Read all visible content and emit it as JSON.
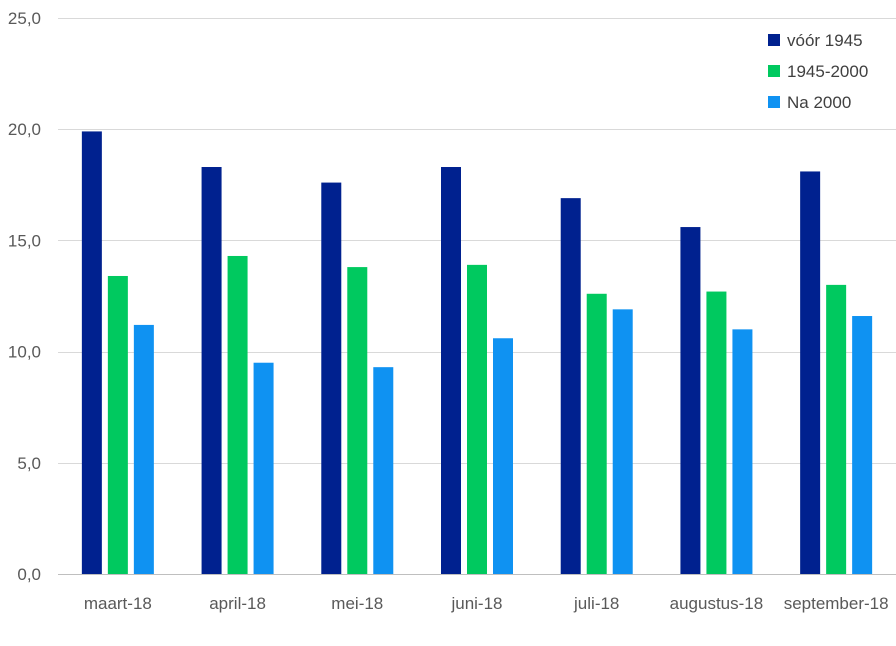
{
  "chart_data": {
    "type": "bar",
    "title": "",
    "xlabel": "",
    "ylabel": "",
    "categories": [
      "maart-18",
      "april-18",
      "mei-18",
      "juni-18",
      "juli-18",
      "augustus-18",
      "september-18"
    ],
    "series": [
      {
        "name": "vóór 1945",
        "color": "#00218f",
        "values": [
          19.9,
          18.3,
          17.6,
          18.3,
          16.9,
          15.6,
          18.1
        ]
      },
      {
        "name": "1945-2000",
        "color": "#00c95f",
        "values": [
          13.4,
          14.3,
          13.8,
          13.9,
          12.6,
          12.7,
          13.0
        ]
      },
      {
        "name": "Na 2000",
        "color": "#0f92f2",
        "values": [
          11.2,
          9.5,
          9.3,
          10.6,
          11.9,
          11.0,
          11.6
        ]
      }
    ],
    "ylim": [
      0,
      25
    ],
    "yticks": [
      0,
      5,
      10,
      15,
      20,
      25
    ],
    "ytick_labels": [
      "0,0",
      "5,0",
      "10,0",
      "15,0",
      "20,0",
      "25,0"
    ],
    "grid": true,
    "legend_position": "top-right"
  }
}
